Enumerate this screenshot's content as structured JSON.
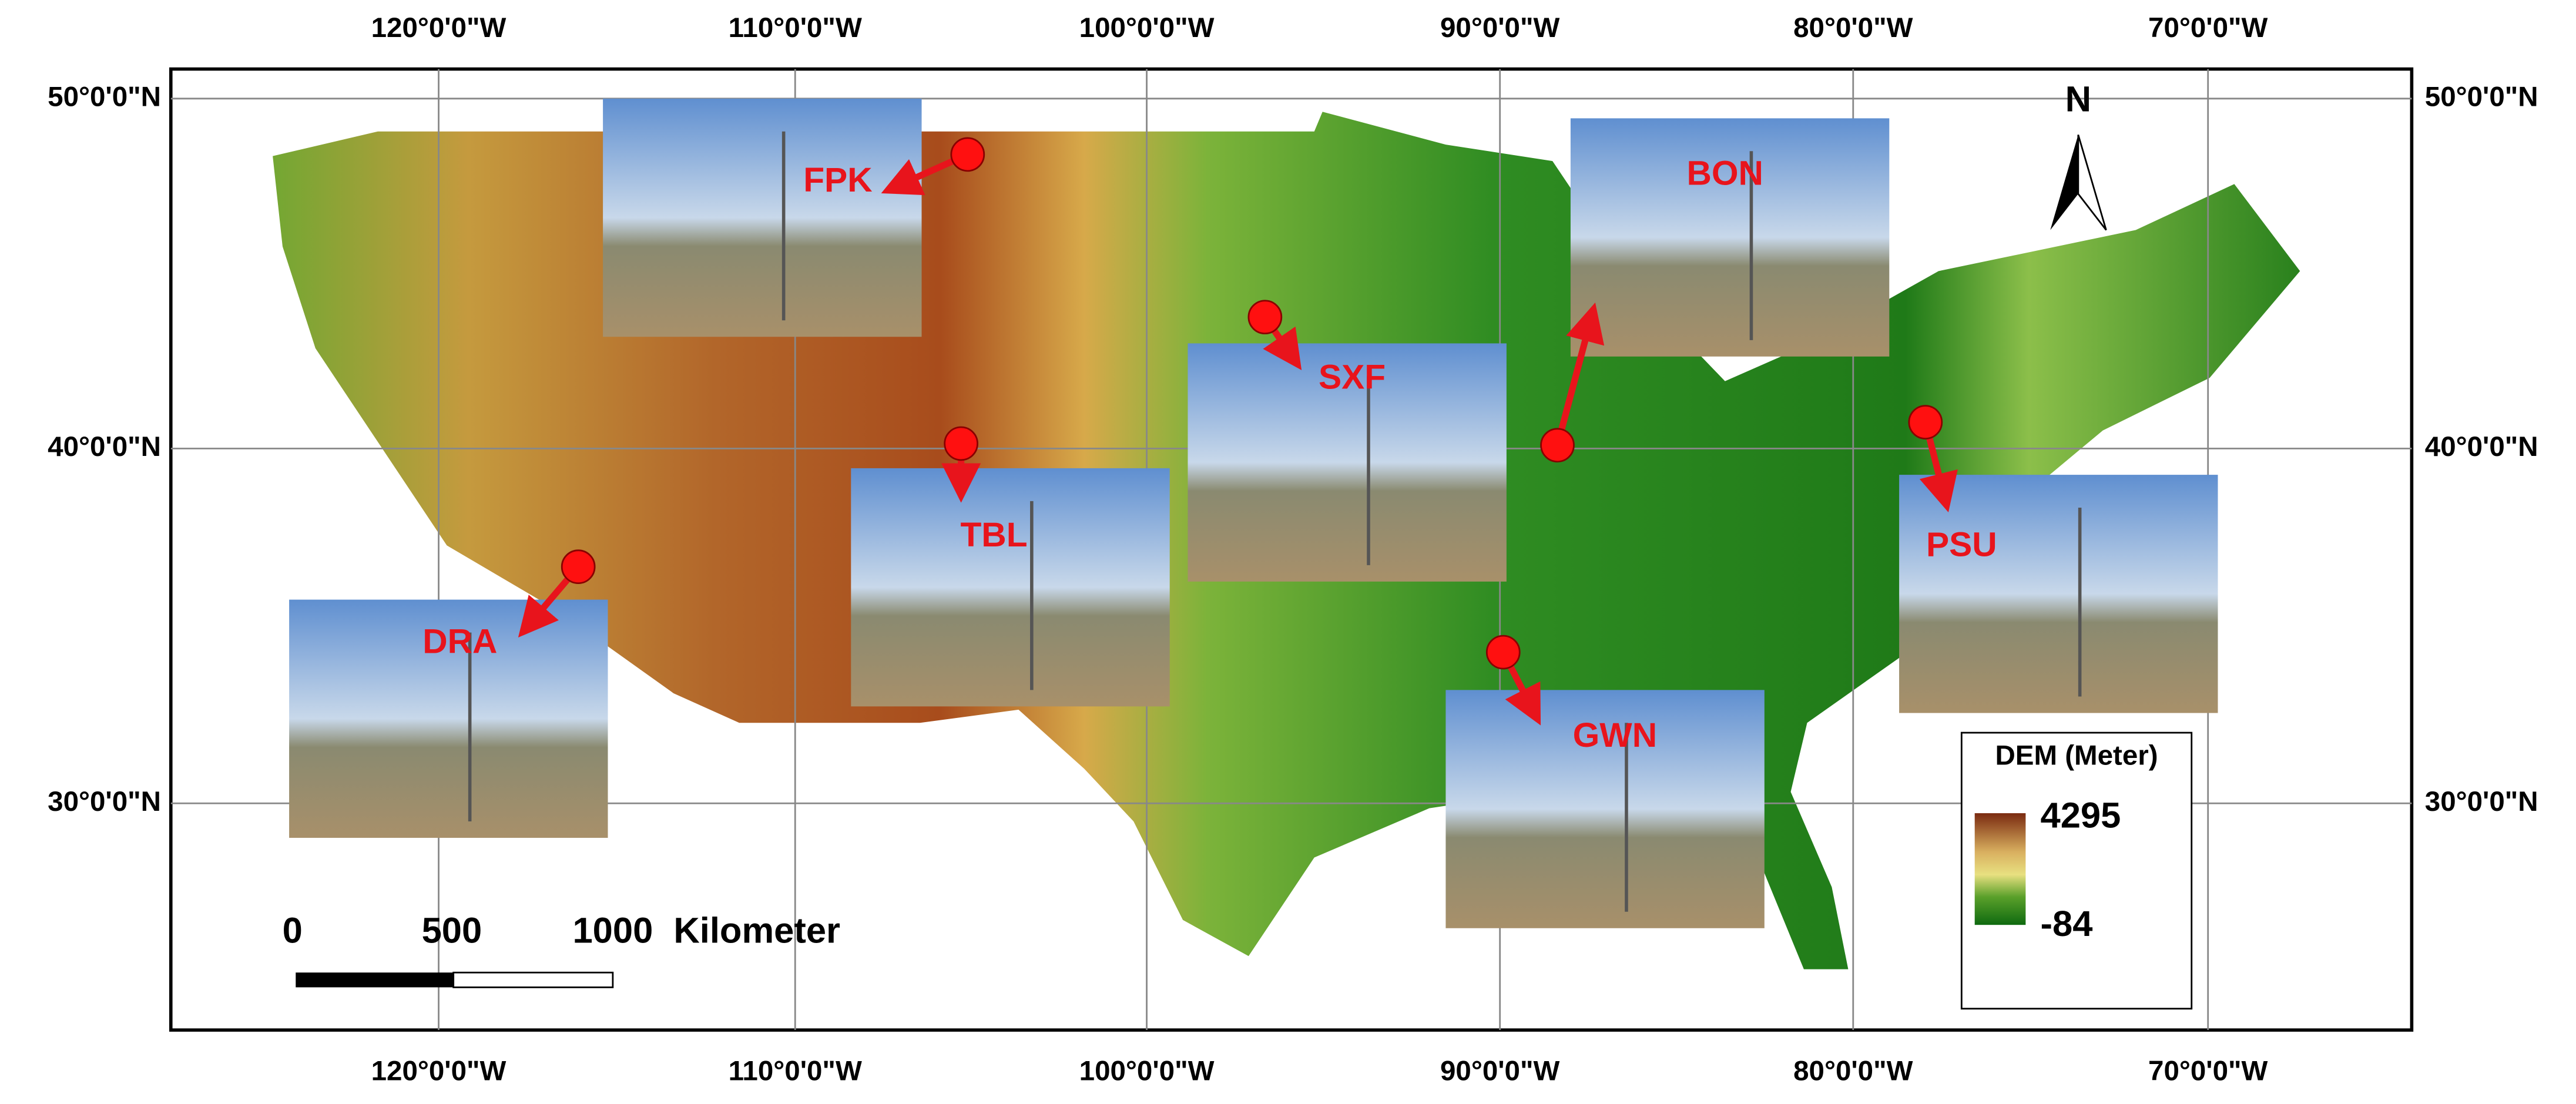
{
  "map": {
    "lon_labels": [
      "120°0'0\"W",
      "110°0'0\"W",
      "100°0'0\"W",
      "90°0'0\"W",
      "80°0'0\"W",
      "70°0'0\"W"
    ],
    "lat_labels": [
      "50°0'0\"N",
      "40°0'0\"N",
      "30°0'0\"N"
    ],
    "stations": [
      {
        "label": "FPK"
      },
      {
        "label": "BON"
      },
      {
        "label": "SXF"
      },
      {
        "label": "TBL"
      },
      {
        "label": "DRA"
      },
      {
        "label": "PSU"
      },
      {
        "label": "GWN"
      }
    ],
    "north": "N",
    "scale_bar": {
      "labels": [
        "0",
        "500",
        "1000"
      ],
      "unit": "Kilometer"
    },
    "legend": {
      "title": "DEM (Meter)",
      "max": "4295",
      "min": "-84"
    }
  }
}
